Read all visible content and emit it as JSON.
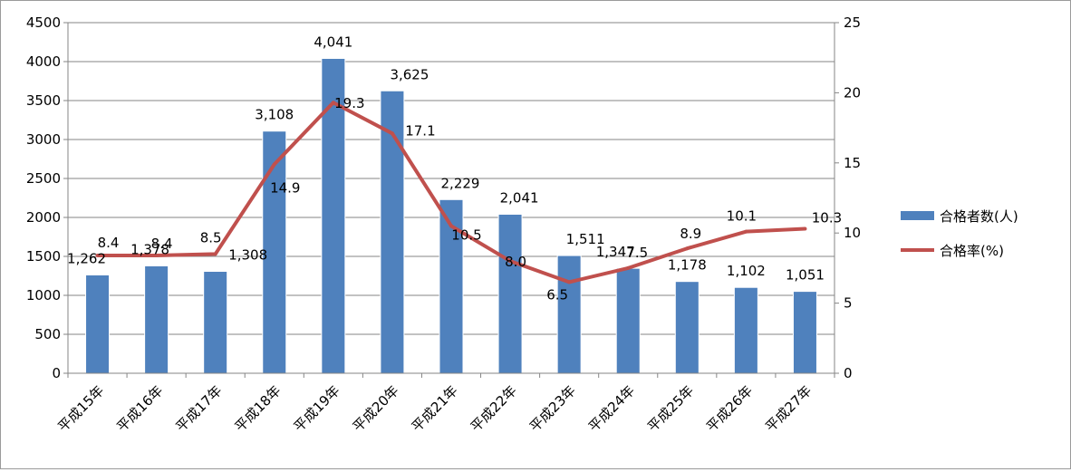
{
  "chart_data": {
    "type": "bar",
    "categories": [
      "平成15年",
      "平成16年",
      "平成17年",
      "平成18年",
      "平成19年",
      "平成20年",
      "平成21年",
      "平成22年",
      "平成23年",
      "平成24年",
      "平成25年",
      "平成26年",
      "平成27年"
    ],
    "series": [
      {
        "name": "合格者数(人)",
        "type": "bar",
        "axis": "left",
        "color": "#4F81BD",
        "values": [
          1262,
          1378,
          1308,
          3108,
          4041,
          3625,
          2229,
          2041,
          1511,
          1347,
          1178,
          1102,
          1051
        ],
        "labels": [
          "1,262",
          "1,378",
          "1,308",
          "3,108",
          "4,041",
          "3,625",
          "2,229",
          "2,041",
          "1,511",
          "1,347",
          "1,178",
          "1,102",
          "1,051"
        ]
      },
      {
        "name": "合格率(%)",
        "type": "line",
        "axis": "right",
        "color": "#C0504D",
        "values": [
          8.4,
          8.4,
          8.5,
          14.9,
          19.3,
          17.1,
          10.5,
          8.0,
          6.5,
          7.5,
          8.9,
          10.1,
          10.3
        ],
        "labels": [
          "8.4",
          "8.4",
          "8.5",
          "14.9",
          "19.3",
          "17.1",
          "10.5",
          "8.0",
          "6.5",
          "7.5",
          "8.9",
          "10.1",
          "10.3"
        ]
      }
    ],
    "y_left": {
      "ylim": [
        0,
        4500
      ],
      "ticks": [
        "0",
        "500",
        "1000",
        "1500",
        "2000",
        "2500",
        "3000",
        "3500",
        "4000",
        "4500"
      ]
    },
    "y_right": {
      "ylim": [
        0,
        25
      ],
      "ticks": [
        "0",
        "5",
        "10",
        "15",
        "20",
        "25"
      ]
    },
    "grid": true,
    "legend_position": "right"
  }
}
